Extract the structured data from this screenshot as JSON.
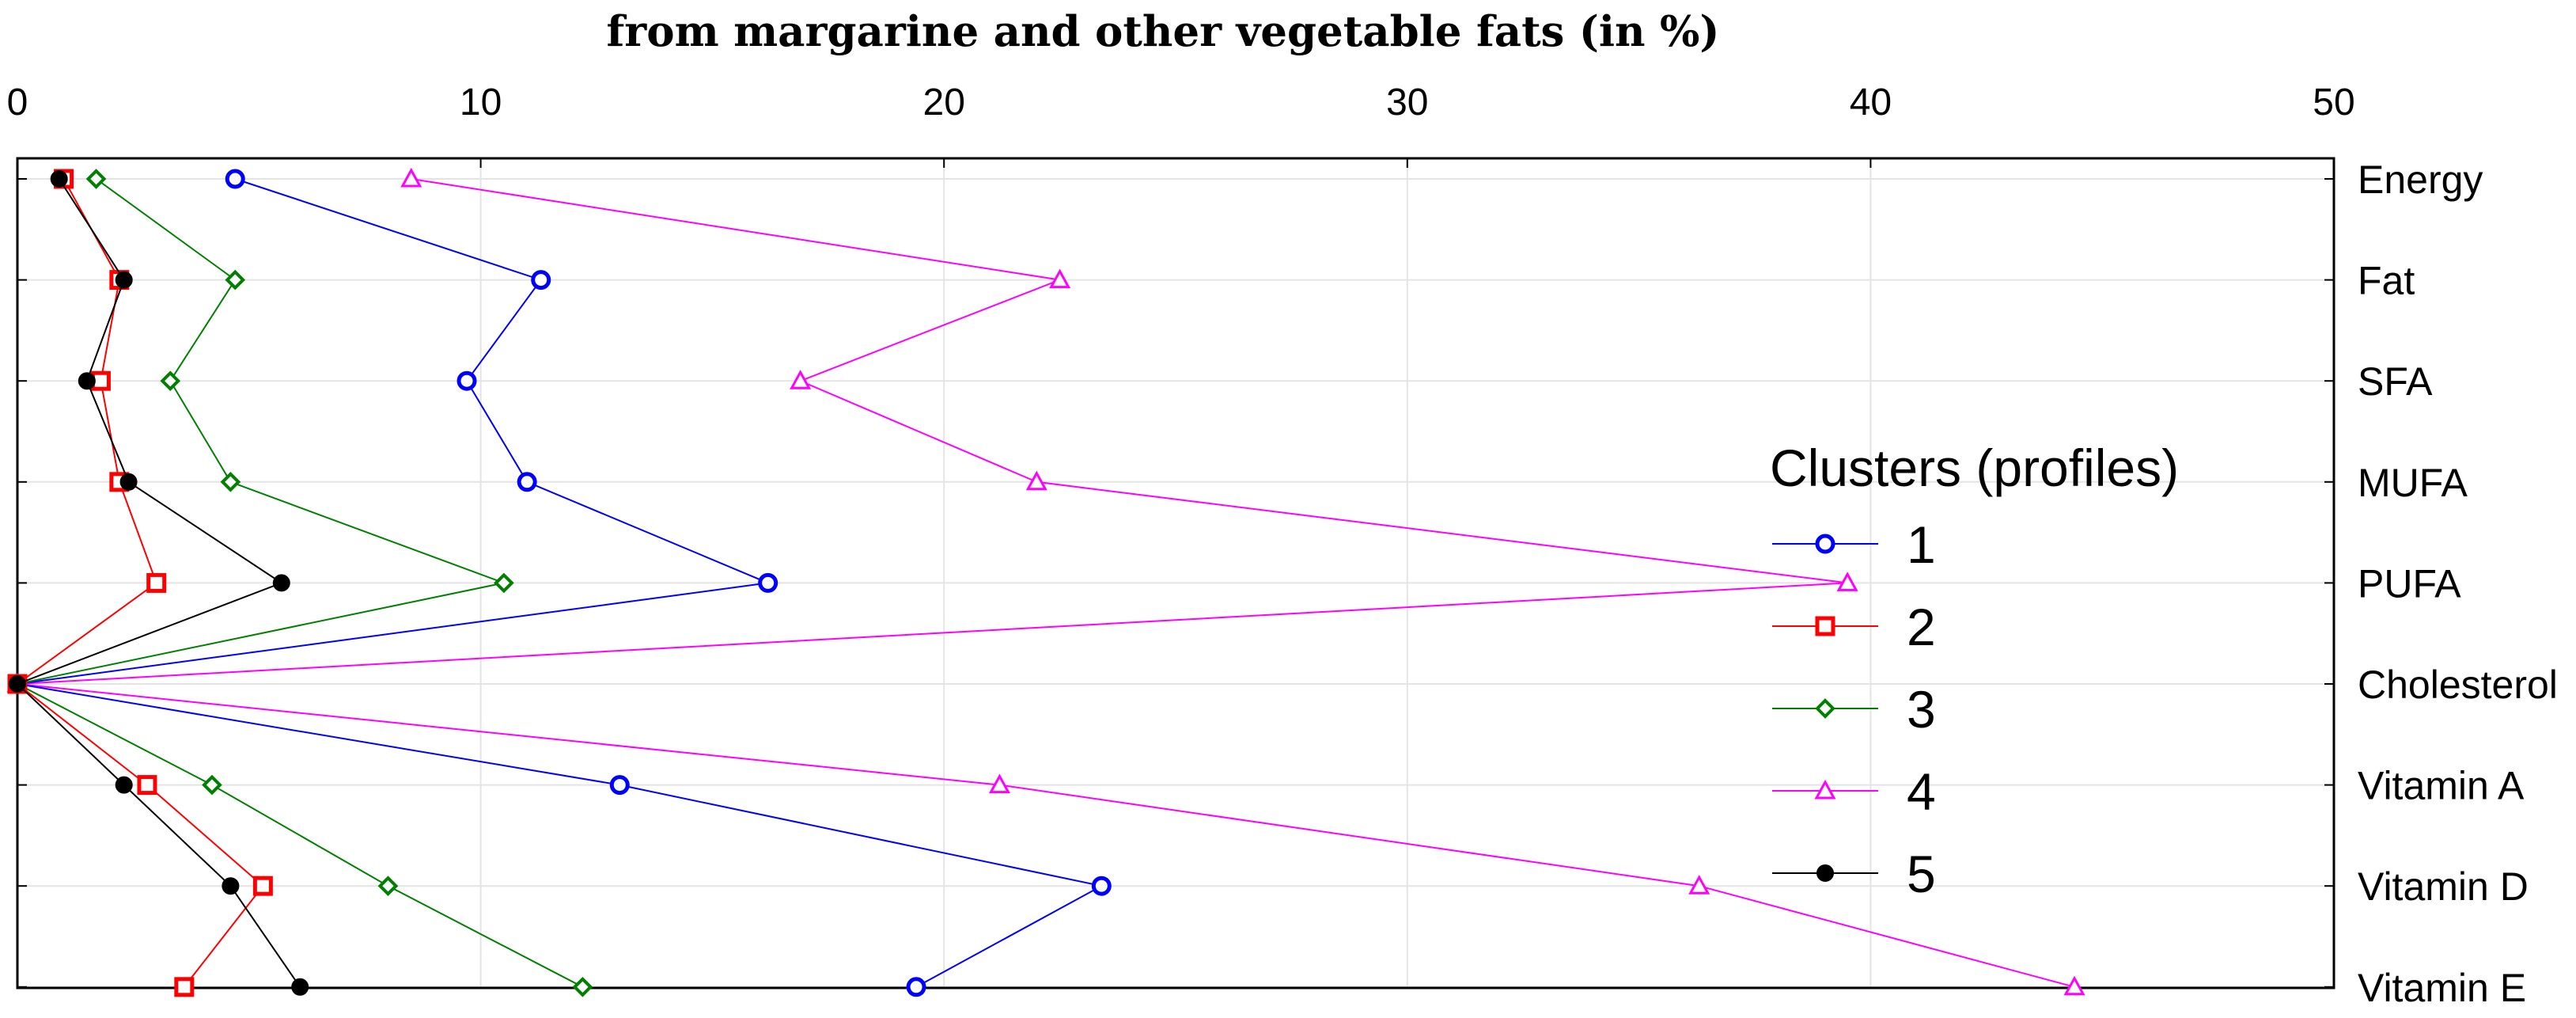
{
  "chart_data": {
    "type": "line",
    "title": "from margarine and other vegetable fats (in %)",
    "xlim": [
      0,
      50
    ],
    "xticks": [
      0,
      10,
      20,
      30,
      40,
      50
    ],
    "categories": [
      "Energy",
      "Fat",
      "SFA",
      "MUFA",
      "PUFA",
      "Cholesterol",
      "Vitamin A",
      "Vitamin D",
      "Vitamin E"
    ],
    "grid": true,
    "legend": {
      "title": "Clusters (profiles)",
      "position": "right"
    },
    "series": [
      {
        "name": "1",
        "color": "#0000ff",
        "marker": "circle",
        "values": [
          4.7,
          11.3,
          9.7,
          11.0,
          16.2,
          0,
          13.0,
          23.4,
          19.4
        ]
      },
      {
        "name": "2",
        "color": "#ff0000",
        "marker": "square",
        "values": [
          1.0,
          2.2,
          1.8,
          2.2,
          3.0,
          0,
          2.8,
          5.3,
          3.6
        ]
      },
      {
        "name": "3",
        "color": "#008000",
        "marker": "diamond",
        "values": [
          1.7,
          4.7,
          3.3,
          4.6,
          10.5,
          0,
          4.2,
          8.0,
          12.2
        ]
      },
      {
        "name": "4",
        "color": "#ff00ff",
        "marker": "triangle",
        "values": [
          8.5,
          22.5,
          16.9,
          22.0,
          39.5,
          0,
          21.2,
          36.3,
          44.4
        ]
      },
      {
        "name": "5",
        "color": "#000000",
        "marker": "filled-circle",
        "values": [
          0.9,
          2.3,
          1.5,
          2.4,
          5.7,
          0,
          2.3,
          4.6,
          6.1
        ]
      }
    ]
  }
}
